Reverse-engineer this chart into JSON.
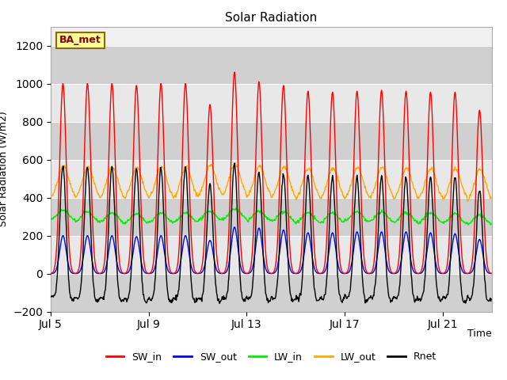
{
  "title": "Solar Radiation",
  "xlabel": "Time",
  "ylabel": "Solar Radiation (W/m2)",
  "ylim": [
    -200,
    1300
  ],
  "yticks": [
    -200,
    0,
    200,
    400,
    600,
    800,
    1000,
    1200
  ],
  "xlim": [
    5,
    23
  ],
  "colors": {
    "SW_in": "#ff0000",
    "SW_out": "#0000ff",
    "LW_in": "#00ee00",
    "LW_out": "#ffaa00",
    "Rnet": "#000000"
  },
  "linewidth": 1.0,
  "background_color": "#ffffff",
  "plot_bg_color": "#f0f0f0",
  "legend_box_color": "#ffff99",
  "legend_box_edge": "#8b6914",
  "annotation_text": "BA_met",
  "annotation_color": "#8b0000",
  "xtick_labels": [
    "Jul 5",
    "Jul 9",
    "Jul 13",
    "Jul 17",
    "Jul 21"
  ],
  "xtick_positions": [
    5,
    9,
    13,
    17,
    21
  ],
  "band_color_light": "#e8e8e8",
  "band_color_dark": "#d0d0d0",
  "n_days": 18
}
